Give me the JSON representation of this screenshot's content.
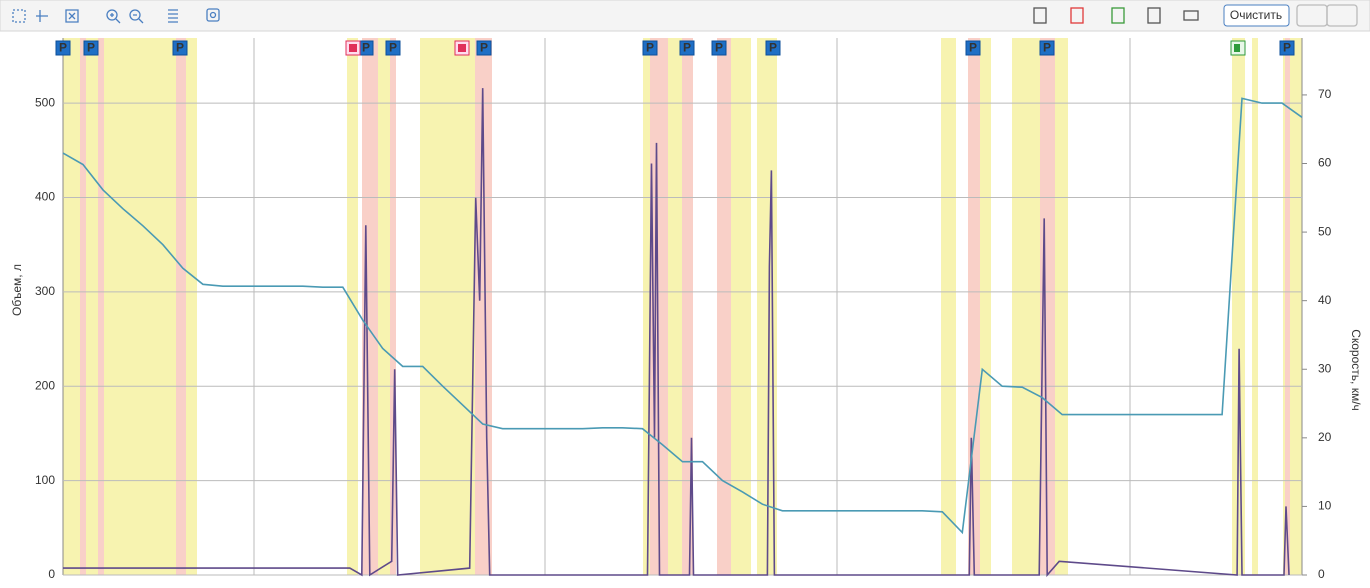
{
  "toolbar": {
    "clear_button": "Очистить"
  },
  "chart_data": {
    "type": "line",
    "ylabel": "Объем, л",
    "y2label": "Скорость, км/ч",
    "ylim": [
      0,
      569
    ],
    "yticks": [
      0,
      100,
      200,
      300,
      400,
      500
    ],
    "y2lim": [
      0,
      78.3
    ],
    "y2ticks": [
      0,
      10,
      20,
      30,
      40,
      50,
      60,
      70
    ],
    "xlim": [
      0,
      62
    ],
    "grid": true,
    "markers": [
      "P",
      "P",
      "P",
      "P",
      "P",
      "P",
      "P",
      "P",
      "P",
      "P",
      "P",
      "P",
      "P"
    ],
    "series": [
      {
        "name": "Объем",
        "color": "#4a9ab4",
        "axis": "y",
        "x": [
          0,
          1,
          2,
          3,
          4,
          5,
          6,
          7,
          8,
          9,
          10,
          11,
          12,
          13,
          14,
          15,
          16,
          17,
          18,
          19,
          20,
          21,
          22,
          23,
          24,
          25,
          26,
          27,
          28,
          29,
          30,
          31,
          32,
          33,
          34,
          35,
          36,
          37,
          38,
          39,
          40,
          41,
          42,
          43,
          44,
          45,
          46,
          47,
          48,
          49,
          50,
          51,
          52,
          53,
          54,
          55,
          56,
          57,
          58,
          59,
          60,
          61,
          62
        ],
        "values": [
          447,
          435,
          408,
          388,
          370,
          350,
          325,
          308,
          306,
          306,
          306,
          306,
          306,
          305,
          305,
          270,
          240,
          221,
          221,
          200,
          180,
          160,
          155,
          155,
          155,
          155,
          155,
          156,
          156,
          155,
          138,
          120,
          120,
          100,
          88,
          75,
          68,
          68,
          68,
          68,
          68,
          68,
          68,
          68,
          67,
          45,
          218,
          200,
          199,
          188,
          170,
          170,
          170,
          170,
          170,
          170,
          170,
          170,
          170,
          505,
          500,
          500,
          485
        ]
      },
      {
        "name": "Скорость",
        "color": "#5e4a8a",
        "axis": "y2",
        "x": [
          0,
          14.35,
          14.95,
          15.15,
          15.35,
          16.45,
          16.6,
          16.75,
          20.35,
          20.65,
          20.85,
          21,
          21.2,
          21.35,
          29.25,
          29.45,
          29.6,
          29.7,
          29.85,
          31.35,
          31.45,
          31.55,
          35.25,
          35.35,
          35.45,
          35.6,
          45.35,
          45.45,
          45.6,
          48.85,
          49.1,
          49.25,
          49.85,
          58.75,
          58.85,
          59,
          61.1,
          61.2,
          61.35
        ],
        "values": [
          1,
          1,
          0,
          51,
          0,
          2,
          30,
          0,
          1,
          55,
          40,
          71,
          20,
          0,
          0,
          60,
          20,
          63,
          0,
          0,
          20,
          0,
          0,
          45,
          59,
          0,
          0,
          20,
          0,
          0,
          52,
          0,
          2,
          0,
          33,
          0,
          0,
          10,
          0
        ]
      }
    ]
  }
}
